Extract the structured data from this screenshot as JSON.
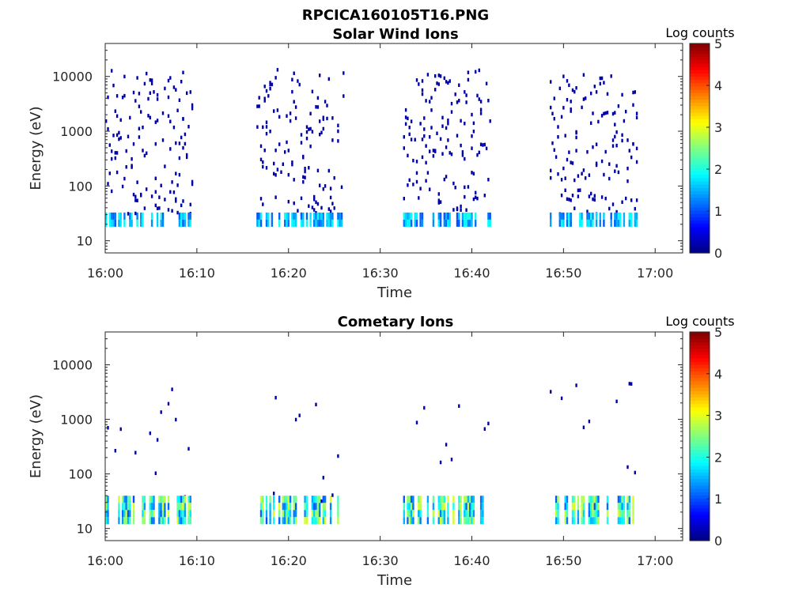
{
  "figure": {
    "filename_title": "RPCICA160105T16.PNG"
  },
  "chart_data": [
    {
      "type": "heatmap",
      "title": "Solar Wind Ions",
      "xlabel": "Time",
      "ylabel": "Energy (eV)",
      "x_tick_labels": [
        "16:00",
        "16:10",
        "16:20",
        "16:30",
        "16:40",
        "16:50",
        "17:00"
      ],
      "x_range_minutes": [
        0,
        63
      ],
      "y_scale": "log",
      "y_tick_values": [
        10,
        100,
        1000,
        10000
      ],
      "y_tick_labels": [
        "10",
        "100",
        "1000",
        "10000"
      ],
      "y_range": [
        6,
        40000
      ],
      "colorbar": {
        "label": "Log counts",
        "range": [
          0,
          5
        ],
        "ticks": [
          "0",
          "1",
          "2",
          "3",
          "4",
          "5"
        ]
      },
      "bursts": [
        {
          "start_min": 0.0,
          "end_min": 9.5,
          "max_energy_eV": 15000
        },
        {
          "start_min": 16.5,
          "end_min": 26.0,
          "max_energy_eV": 14000
        },
        {
          "start_min": 32.5,
          "end_min": 42.0,
          "max_energy_eV": 13000
        },
        {
          "start_min": 48.5,
          "end_min": 58.0,
          "max_energy_eV": 11000
        }
      ],
      "features": {
        "sparse_counts_log": 0.2,
        "low_energy_band_eV": [
          18,
          32
        ],
        "low_energy_band_log_counts": [
          1,
          2
        ]
      }
    },
    {
      "type": "heatmap",
      "title": "Cometary Ions",
      "xlabel": "Time",
      "ylabel": "Energy (eV)",
      "x_tick_labels": [
        "16:00",
        "16:10",
        "16:20",
        "16:30",
        "16:40",
        "16:50",
        "17:00"
      ],
      "x_range_minutes": [
        0,
        63
      ],
      "y_scale": "log",
      "y_tick_values": [
        10,
        100,
        1000,
        10000
      ],
      "y_tick_labels": [
        "10",
        "100",
        "1000",
        "10000"
      ],
      "y_range": [
        6,
        40000
      ],
      "colorbar": {
        "label": "Log counts",
        "range": [
          0,
          5
        ],
        "ticks": [
          "0",
          "1",
          "2",
          "3",
          "4",
          "5"
        ]
      },
      "bursts": [
        {
          "start_min": 0.0,
          "end_min": 9.5,
          "max_energy_eV": 4000
        },
        {
          "start_min": 16.5,
          "end_min": 26.0,
          "max_energy_eV": 3000
        },
        {
          "start_min": 32.5,
          "end_min": 42.0,
          "max_energy_eV": 3000
        },
        {
          "start_min": 48.5,
          "end_min": 58.0,
          "max_energy_eV": 7000
        }
      ],
      "features": {
        "sparse_counts_log": 0.2,
        "low_energy_band_eV": [
          12,
          35
        ],
        "low_energy_band_log_counts": [
          1,
          3
        ]
      }
    }
  ]
}
